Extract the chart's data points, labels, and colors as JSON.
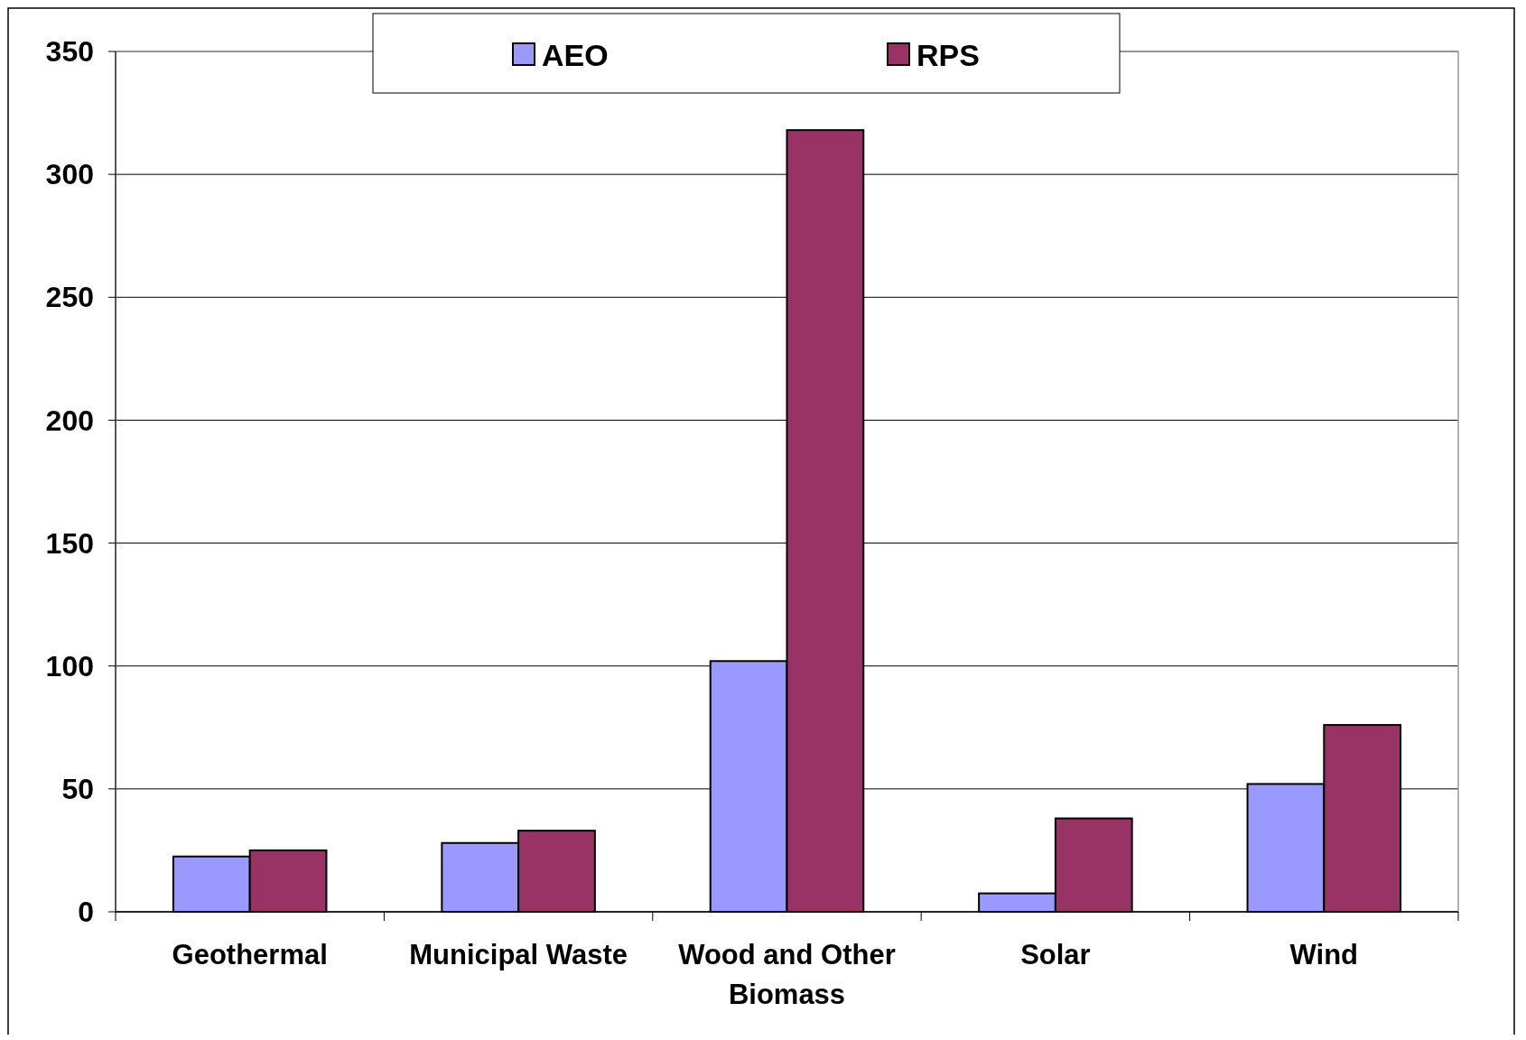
{
  "chart_data": {
    "type": "bar",
    "categories": [
      "Geothermal",
      "Municipal Waste",
      "Wood and Other Biomass",
      "Solar",
      "Wind"
    ],
    "series": [
      {
        "name": "AEO",
        "color": "#9999ff",
        "values": [
          22.5,
          28,
          102,
          7.5,
          52
        ]
      },
      {
        "name": "RPS",
        "color": "#993366",
        "values": [
          25,
          33,
          318,
          38,
          76
        ]
      }
    ],
    "ylim": [
      0,
      350
    ],
    "yticks": [
      0,
      50,
      100,
      150,
      200,
      250,
      300,
      350
    ],
    "grid": "y",
    "legend": "top"
  }
}
